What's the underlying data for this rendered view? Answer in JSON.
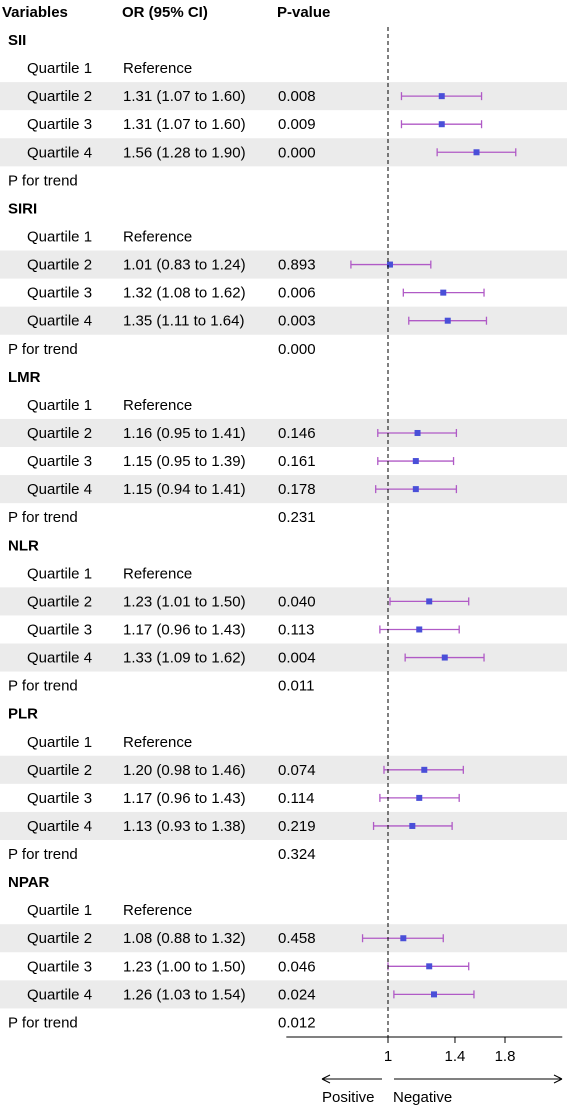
{
  "header": {
    "variables": "Variables",
    "or": "OR (95% CI)",
    "pvalue": "P-value"
  },
  "chart_data": {
    "type": "forest",
    "reference_line": 1,
    "axis": {
      "ticks": [
        {
          "value": 1,
          "label": "1"
        },
        {
          "value": 1.4,
          "label": "1.4"
        },
        {
          "value": 1.8,
          "label": "1.8"
        }
      ],
      "range": [
        0.6,
        2.4
      ],
      "left_label": "Positive",
      "right_label": "Negative"
    },
    "groups": [
      {
        "name": "SII",
        "rows": [
          {
            "label": "Quartile 1",
            "or_text": "Reference",
            "p": ""
          },
          {
            "label": "Quartile 2",
            "or_text": "1.31 (1.07 to 1.60)",
            "p": "0.008",
            "or": 1.31,
            "lo": 1.07,
            "hi": 1.6
          },
          {
            "label": "Quartile 3",
            "or_text": "1.31 (1.07 to 1.60)",
            "p": "0.009",
            "or": 1.31,
            "lo": 1.07,
            "hi": 1.6
          },
          {
            "label": "Quartile 4",
            "or_text": "1.56 (1.28 to 1.90)",
            "p": "0.000",
            "or": 1.56,
            "lo": 1.28,
            "hi": 1.9
          }
        ],
        "trend": {
          "label": "P for trend",
          "p": ""
        }
      },
      {
        "name": "SIRI",
        "rows": [
          {
            "label": "Quartile 1",
            "or_text": "Reference",
            "p": ""
          },
          {
            "label": "Quartile 2",
            "or_text": "1.01 (0.83 to 1.24)",
            "p": "0.893",
            "or": 1.01,
            "lo": 0.83,
            "hi": 1.24
          },
          {
            "label": "Quartile 3",
            "or_text": "1.32 (1.08 to 1.62)",
            "p": "0.006",
            "or": 1.32,
            "lo": 1.08,
            "hi": 1.62
          },
          {
            "label": "Quartile 4",
            "or_text": "1.35 (1.11 to 1.64)",
            "p": "0.003",
            "or": 1.35,
            "lo": 1.11,
            "hi": 1.64
          }
        ],
        "trend": {
          "label": "P for trend",
          "p": "0.000"
        }
      },
      {
        "name": "LMR",
        "rows": [
          {
            "label": "Quartile 1",
            "or_text": "Reference",
            "p": ""
          },
          {
            "label": "Quartile 2",
            "or_text": "1.16 (0.95 to 1.41)",
            "p": "0.146",
            "or": 1.16,
            "lo": 0.95,
            "hi": 1.41
          },
          {
            "label": "Quartile 3",
            "or_text": "1.15 (0.95 to 1.39)",
            "p": "0.161",
            "or": 1.15,
            "lo": 0.95,
            "hi": 1.39
          },
          {
            "label": "Quartile 4",
            "or_text": "1.15 (0.94 to 1.41)",
            "p": "0.178",
            "or": 1.15,
            "lo": 0.94,
            "hi": 1.41
          }
        ],
        "trend": {
          "label": "P for trend",
          "p": "0.231"
        }
      },
      {
        "name": "NLR",
        "rows": [
          {
            "label": "Quartile 1",
            "or_text": "Reference",
            "p": ""
          },
          {
            "label": "Quartile 2",
            "or_text": "1.23 (1.01 to 1.50)",
            "p": "0.040",
            "or": 1.23,
            "lo": 1.01,
            "hi": 1.5
          },
          {
            "label": "Quartile 3",
            "or_text": "1.17 (0.96 to 1.43)",
            "p": "0.113",
            "or": 1.17,
            "lo": 0.96,
            "hi": 1.43
          },
          {
            "label": "Quartile 4",
            "or_text": "1.33 (1.09 to 1.62)",
            "p": "0.004",
            "or": 1.33,
            "lo": 1.09,
            "hi": 1.62
          }
        ],
        "trend": {
          "label": "P for trend",
          "p": "0.011"
        }
      },
      {
        "name": "PLR",
        "rows": [
          {
            "label": "Quartile 1",
            "or_text": "Reference",
            "p": ""
          },
          {
            "label": "Quartile 2",
            "or_text": "1.20 (0.98 to 1.46)",
            "p": "0.074",
            "or": 1.2,
            "lo": 0.98,
            "hi": 1.46
          },
          {
            "label": "Quartile 3",
            "or_text": "1.17 (0.96 to 1.43)",
            "p": "0.114",
            "or": 1.17,
            "lo": 0.96,
            "hi": 1.43
          },
          {
            "label": "Quartile 4",
            "or_text": "1.13 (0.93 to 1.38)",
            "p": "0.219",
            "or": 1.13,
            "lo": 0.93,
            "hi": 1.38
          }
        ],
        "trend": {
          "label": "P for trend",
          "p": "0.324"
        }
      },
      {
        "name": "NPAR",
        "rows": [
          {
            "label": "Quartile 1",
            "or_text": "Reference",
            "p": ""
          },
          {
            "label": "Quartile 2",
            "or_text": "1.08 (0.88 to 1.32)",
            "p": "0.458",
            "or": 1.08,
            "lo": 0.88,
            "hi": 1.32
          },
          {
            "label": "Quartile 3",
            "or_text": "1.23 (1.00 to 1.50)",
            "p": "0.046",
            "or": 1.23,
            "lo": 1.0,
            "hi": 1.5
          },
          {
            "label": "Quartile 4",
            "or_text": "1.26 (1.03 to 1.54)",
            "p": "0.024",
            "or": 1.26,
            "lo": 1.03,
            "hi": 1.54
          }
        ],
        "trend": {
          "label": "P for trend",
          "p": "0.012"
        }
      }
    ]
  },
  "colors": {
    "band": "#ebebeb",
    "ci_line": "#b05ac6",
    "point": "#4a4fd8",
    "axis": "#000000"
  }
}
